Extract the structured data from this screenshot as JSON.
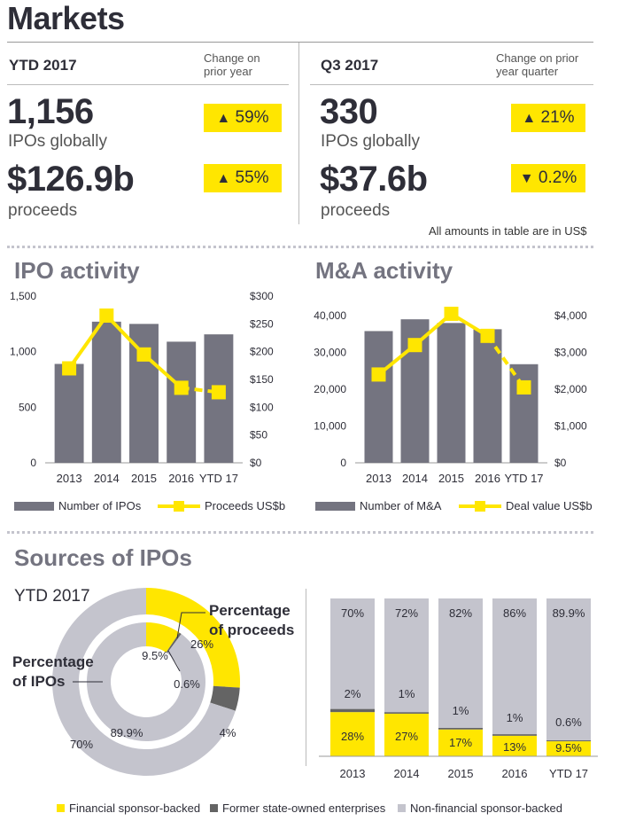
{
  "title": "Markets",
  "ytd": {
    "header": "YTD 2017",
    "change_label": "Change on prior year",
    "ipos": "1,156",
    "ipos_label": "IPOs globally",
    "ipos_change": "59%",
    "ipos_dir": "▲",
    "proceeds": "$126.9b",
    "proceeds_label": "proceeds",
    "proceeds_change": "55%",
    "proceeds_dir": "▲"
  },
  "q3": {
    "header": "Q3 2017",
    "change_label": "Change on prior year quarter",
    "ipos": "330",
    "ipos_label": "IPOs globally",
    "ipos_change": "21%",
    "ipos_dir": "▲",
    "proceeds": "$37.6b",
    "proceeds_label": "proceeds",
    "proceeds_change": "0.2%",
    "proceeds_dir": "▼"
  },
  "note": "All amounts in table are in US$",
  "colors": {
    "yellow": "#ffe600",
    "dark_grey": "#747480",
    "mid_grey": "#646464",
    "light_grey": "#c4c4cd",
    "text": "#2e2e38"
  },
  "chart_data": [
    {
      "type": "bar+line",
      "title": "IPO activity",
      "categories": [
        "2013",
        "2014",
        "2015",
        "2016",
        "YTD 17"
      ],
      "series": [
        {
          "name": "Number of IPOs",
          "type": "bar",
          "axis": "left",
          "values": [
            890,
            1270,
            1250,
            1090,
            1156
          ]
        },
        {
          "name": "Proceeds US$b",
          "type": "line",
          "axis": "right",
          "values": [
            170,
            265,
            195,
            135,
            127
          ],
          "dashed_last_segment": true
        }
      ],
      "y_left": {
        "lim": [
          0,
          1500
        ],
        "ticks": [
          "0",
          "500",
          "1,000",
          "1,500"
        ],
        "tick_values": [
          0,
          500,
          1000,
          1500
        ]
      },
      "y_right": {
        "lim": [
          0,
          300
        ],
        "ticks": [
          "$0",
          "$50",
          "$100",
          "$150",
          "$200",
          "$250",
          "$300"
        ],
        "tick_values": [
          0,
          50,
          100,
          150,
          200,
          250,
          300
        ]
      },
      "legend_position": "bottom"
    },
    {
      "type": "bar+line",
      "title": "M&A activity",
      "categories": [
        "2013",
        "2014",
        "2015",
        "2016",
        "YTD 17"
      ],
      "series": [
        {
          "name": "Number of M&A",
          "type": "bar",
          "axis": "left",
          "values": [
            35800,
            39000,
            38000,
            36300,
            26800
          ]
        },
        {
          "name": "Deal value US$b",
          "type": "line",
          "axis": "right",
          "values": [
            2400,
            3200,
            4050,
            3450,
            2050
          ],
          "dashed_last_segment": true
        }
      ],
      "y_left": {
        "lim": [
          0,
          40000
        ],
        "ticks": [
          "0",
          "10,000",
          "20,000",
          "30,000",
          "40,000"
        ],
        "tick_values": [
          0,
          10000,
          20000,
          30000,
          40000
        ]
      },
      "y_right": {
        "lim": [
          0,
          4000
        ],
        "ticks": [
          "$0",
          "$1,000",
          "$2,000",
          "$3,000",
          "$4,000"
        ],
        "tick_values": [
          0,
          1000,
          2000,
          3000,
          4000
        ]
      },
      "legend_position": "bottom"
    },
    {
      "type": "pie",
      "title": "Sources of IPOs",
      "subtitle": "YTD 2017",
      "outer_label": "Percentage of proceeds",
      "inner_label": "Percentage of IPOs",
      "outer": [
        {
          "name": "Financial sponsor-backed",
          "value": 26,
          "label": "26%"
        },
        {
          "name": "Former state-owned enterprises",
          "value": 4,
          "label": "4%"
        },
        {
          "name": "Non-financial sponsor-backed",
          "value": 70,
          "label": "70%"
        }
      ],
      "inner": [
        {
          "name": "Financial sponsor-backed",
          "value": 9.5,
          "label": "9.5%"
        },
        {
          "name": "Former state-owned enterprises",
          "value": 0.6,
          "label": "0.6%"
        },
        {
          "name": "Non-financial sponsor-backed",
          "value": 89.9,
          "label": "89.9%"
        }
      ]
    },
    {
      "type": "bar",
      "stacked": true,
      "categories": [
        "2013",
        "2014",
        "2015",
        "2016",
        "YTD 17"
      ],
      "series": [
        {
          "name": "Financial sponsor-backed",
          "values": [
            28,
            27,
            17,
            13,
            9.5
          ],
          "labels": [
            "28%",
            "27%",
            "17%",
            "13%",
            "9.5%"
          ]
        },
        {
          "name": "Former state-owned enterprises",
          "values": [
            2,
            1,
            1,
            1,
            0.6
          ],
          "labels": [
            "2%",
            "1%",
            "1%",
            "1%",
            "0.6%"
          ]
        },
        {
          "name": "Non-financial sponsor-backed",
          "values": [
            70,
            72,
            82,
            86,
            89.9
          ],
          "labels": [
            "70%",
            "72%",
            "82%",
            "86%",
            "89.9%"
          ]
        }
      ],
      "ylim": [
        0,
        100
      ]
    }
  ],
  "legend": {
    "items": [
      {
        "label": "Financial sponsor-backed",
        "color": "#ffe600"
      },
      {
        "label": "Former state-owned enterprises",
        "color": "#646464"
      },
      {
        "label": "Non-financial sponsor-backed",
        "color": "#c4c4cd"
      }
    ]
  }
}
